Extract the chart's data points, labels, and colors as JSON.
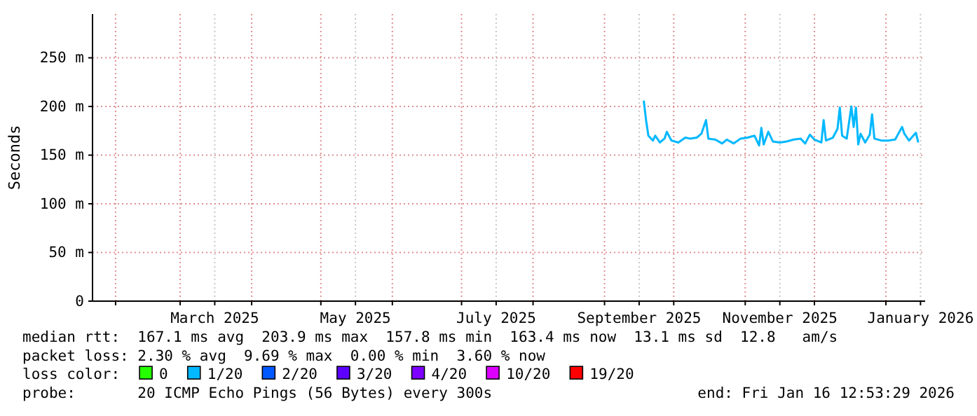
{
  "chart_data": {
    "type": "line",
    "ylabel": "Seconds",
    "x": [
      "2025-09-18",
      "2025-09-19",
      "2025-09-20",
      "2025-09-22",
      "2025-09-23",
      "2025-09-25",
      "2025-09-27",
      "2025-09-28",
      "2025-09-30",
      "2025-10-03",
      "2025-10-06",
      "2025-10-08",
      "2025-10-11",
      "2025-10-13",
      "2025-10-15",
      "2025-10-16",
      "2025-10-19",
      "2025-10-22",
      "2025-10-24",
      "2025-10-27",
      "2025-10-30",
      "2025-11-02",
      "2025-11-05",
      "2025-11-07",
      "2025-11-08",
      "2025-11-09",
      "2025-11-11",
      "2025-11-13",
      "2025-11-16",
      "2025-11-19",
      "2025-11-22",
      "2025-11-25",
      "2025-11-27",
      "2025-11-29",
      "2025-12-01",
      "2025-12-04",
      "2025-12-05",
      "2025-12-06",
      "2025-12-09",
      "2025-12-11",
      "2025-12-12",
      "2025-12-13",
      "2025-12-15",
      "2025-12-17",
      "2025-12-18",
      "2025-12-19",
      "2025-12-20",
      "2025-12-21",
      "2025-12-23",
      "2025-12-25",
      "2025-12-26",
      "2025-12-27",
      "2025-12-30",
      "2026-01-02",
      "2026-01-05",
      "2026-01-08",
      "2026-01-09",
      "2026-01-11",
      "2026-01-14",
      "2026-01-15"
    ],
    "series": [
      {
        "name": "0",
        "color": "#26ff00",
        "values": [
          null,
          null,
          null,
          null,
          null,
          null,
          null,
          null,
          null,
          null,
          null,
          null,
          null,
          null,
          null,
          null,
          null,
          null,
          null,
          null,
          null,
          null,
          null,
          null,
          null,
          null,
          null,
          null,
          null,
          null,
          null,
          null,
          null,
          null,
          null,
          null,
          null,
          null,
          null,
          null,
          null,
          null,
          null,
          null,
          null,
          null,
          null,
          null,
          null,
          null,
          null,
          null,
          null,
          null,
          null,
          null,
          null,
          null,
          null,
          null
        ]
      },
      {
        "name": "1/20",
        "color": "#00b8ff",
        "values": [
          206,
          186,
          170,
          165,
          170,
          163,
          167,
          174,
          165,
          163,
          168,
          167,
          168,
          172,
          186,
          167,
          166,
          162,
          166,
          162,
          167,
          168,
          170,
          160,
          178,
          161,
          174,
          164,
          163,
          164,
          166,
          167,
          162,
          171,
          166,
          163,
          186,
          165,
          168,
          177,
          199,
          170,
          167,
          200,
          179,
          199,
          161,
          172,
          163,
          171,
          192,
          167,
          165,
          165,
          166,
          179,
          172,
          165,
          173,
          163
        ]
      },
      {
        "name": "2/20",
        "color": "#0059ff",
        "values": [
          null,
          null,
          null,
          null,
          null,
          null,
          null,
          null,
          null,
          null,
          null,
          null,
          null,
          null,
          null,
          null,
          null,
          null,
          null,
          null,
          null,
          null,
          null,
          null,
          null,
          null,
          null,
          null,
          null,
          null,
          null,
          null,
          null,
          null,
          null,
          null,
          null,
          null,
          null,
          null,
          null,
          null,
          null,
          null,
          null,
          null,
          null,
          null,
          null,
          null,
          null,
          null,
          null,
          null,
          null,
          null,
          null,
          null,
          null,
          null
        ]
      },
      {
        "name": "3/20",
        "color": "#5e00ff",
        "values": [
          null,
          null,
          null,
          null,
          null,
          null,
          null,
          null,
          null,
          null,
          null,
          null,
          null,
          null,
          null,
          null,
          null,
          null,
          null,
          null,
          null,
          null,
          null,
          null,
          null,
          null,
          null,
          null,
          null,
          null,
          null,
          null,
          null,
          null,
          null,
          null,
          null,
          null,
          null,
          null,
          null,
          null,
          null,
          null,
          null,
          null,
          null,
          null,
          null,
          null,
          null,
          null,
          null,
          null,
          null,
          null,
          null,
          null,
          null,
          null
        ]
      },
      {
        "name": "4/20",
        "color": "#7e00ff",
        "values": [
          null,
          null,
          null,
          null,
          null,
          null,
          null,
          null,
          null,
          null,
          null,
          null,
          null,
          null,
          null,
          null,
          null,
          null,
          null,
          null,
          null,
          null,
          null,
          null,
          null,
          null,
          null,
          null,
          null,
          null,
          null,
          null,
          null,
          null,
          null,
          null,
          null,
          null,
          null,
          null,
          null,
          null,
          null,
          null,
          null,
          null,
          null,
          null,
          null,
          null,
          null,
          null,
          null,
          null,
          null,
          null,
          null,
          null,
          null,
          null
        ]
      },
      {
        "name": "10/20",
        "color": "#dd00ff",
        "values": [
          null,
          null,
          null,
          null,
          null,
          null,
          null,
          null,
          null,
          null,
          null,
          null,
          null,
          null,
          null,
          null,
          null,
          null,
          null,
          null,
          null,
          null,
          null,
          null,
          null,
          null,
          null,
          null,
          null,
          null,
          null,
          null,
          null,
          null,
          null,
          null,
          null,
          null,
          null,
          null,
          null,
          null,
          null,
          null,
          null,
          null,
          null,
          null,
          null,
          null,
          null,
          null,
          null,
          null,
          null,
          null,
          null,
          null,
          null,
          null
        ]
      },
      {
        "name": "19/20",
        "color": "#ff0000",
        "values": [
          null,
          null,
          null,
          null,
          null,
          null,
          null,
          null,
          null,
          null,
          null,
          null,
          null,
          null,
          null,
          null,
          null,
          null,
          null,
          null,
          null,
          null,
          null,
          null,
          null,
          null,
          null,
          null,
          null,
          null,
          null,
          null,
          null,
          null,
          null,
          null,
          null,
          null,
          null,
          null,
          null,
          null,
          null,
          null,
          null,
          null,
          null,
          null,
          null,
          null,
          null,
          null,
          null,
          null,
          null,
          null,
          null,
          null,
          null,
          null
        ]
      }
    ],
    "legend_title": "loss color:",
    "legend": "bottom",
    "xlim": [
      "2025-01-22",
      "2026-01-18"
    ],
    "xticks": [
      {
        "value": "2025-02-01",
        "label": null
      },
      {
        "value": "2025-03-01",
        "label": null
      },
      {
        "value": "2025-03-16",
        "label": "March 2025"
      },
      {
        "value": "2025-04-01",
        "label": null
      },
      {
        "value": "2025-05-01",
        "label": null
      },
      {
        "value": "2025-05-16",
        "label": "May 2025"
      },
      {
        "value": "2025-06-01",
        "label": null
      },
      {
        "value": "2025-07-01",
        "label": null
      },
      {
        "value": "2025-07-16",
        "label": "July 2025"
      },
      {
        "value": "2025-08-01",
        "label": null
      },
      {
        "value": "2025-09-01",
        "label": null
      },
      {
        "value": "2025-09-16",
        "label": "September 2025"
      },
      {
        "value": "2025-10-01",
        "label": null
      },
      {
        "value": "2025-11-01",
        "label": null
      },
      {
        "value": "2025-11-16",
        "label": "November 2025"
      },
      {
        "value": "2025-12-01",
        "label": null
      },
      {
        "value": "2026-01-01",
        "label": null
      },
      {
        "value": "2026-01-16",
        "label": "January 2026"
      }
    ],
    "ylim": [
      0,
      295
    ],
    "yticks": [
      {
        "value": 0,
        "label": "0"
      },
      {
        "value": 50,
        "label": "50 m"
      },
      {
        "value": 100,
        "label": "100 m"
      },
      {
        "value": 150,
        "label": "150 m"
      },
      {
        "value": 200,
        "label": "200 m"
      },
      {
        "value": 250,
        "label": "250 m"
      }
    ],
    "grid": true,
    "line_style": "solid",
    "marker": "none",
    "annotations": [
      "median rtt:  167.1 ms avg  203.9 ms max  157.8 ms min  163.4 ms now  13.1 ms sd  12.8   am/s",
      "packet loss: 2.30 % avg  9.69 % max  0.00 % min  3.60 % now",
      "probe:       20 ICMP Echo Pings (56 Bytes) every 300s",
      "end: Fri Jan 16 12:53:29 2026"
    ]
  }
}
